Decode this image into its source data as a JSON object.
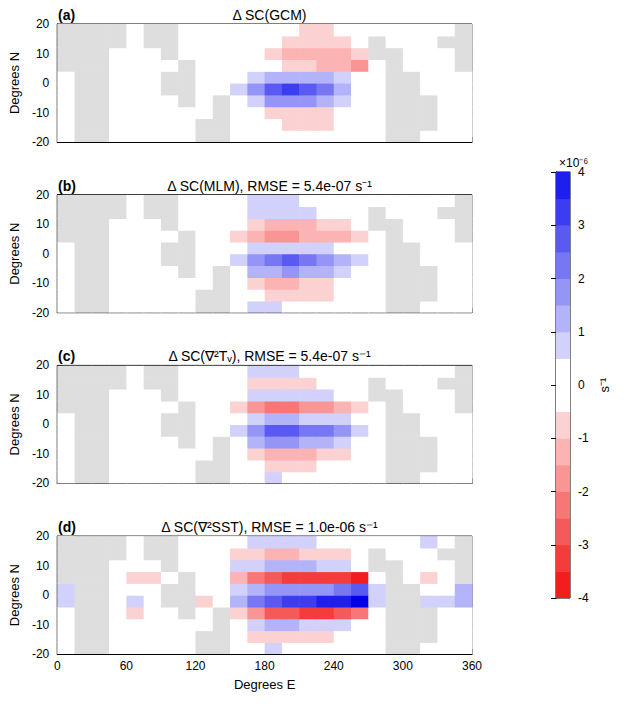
{
  "chart_data": {
    "type": "heatmap",
    "xlabel": "Degrees E",
    "ylabel": "Degrees N",
    "xlim": [
      0,
      360
    ],
    "xticks": [
      0,
      60,
      120,
      180,
      240,
      300,
      360
    ],
    "ylim": [
      -20,
      20
    ],
    "yticks": [
      -20,
      -10,
      0,
      10,
      20
    ],
    "grid": false,
    "x": [
      7.5,
      22.5,
      37.5,
      52.5,
      67.5,
      82.5,
      97.5,
      112.5,
      127.5,
      142.5,
      157.5,
      172.5,
      187.5,
      202.5,
      217.5,
      232.5,
      247.5,
      262.5,
      277.5,
      292.5,
      307.5,
      322.5,
      337.5,
      352.5
    ],
    "y": [
      -18,
      -14,
      -10,
      -6,
      -2,
      2,
      6,
      10,
      14,
      18
    ],
    "colorbar": {
      "range": [
        -4,
        4
      ],
      "ticks": [
        -4,
        -3,
        -2,
        -1,
        0,
        1,
        2,
        3,
        4
      ],
      "scale_label": "×10⁻⁶",
      "label": "s⁻¹"
    },
    "panels": [
      {
        "letter": "(a)",
        "title": "Δ SC(GCM)",
        "tick_labels": "y",
        "values": [
          [
            0,
            null,
            null,
            0,
            0,
            0,
            0,
            0,
            null,
            null,
            0,
            0,
            0,
            -0.2,
            -0.3,
            -0.3,
            -0.2,
            0,
            0,
            null,
            null,
            0,
            0,
            0
          ],
          [
            0,
            null,
            null,
            0,
            0,
            0,
            0,
            0,
            null,
            null,
            0,
            0,
            -0.3,
            -0.5,
            -0.6,
            -0.5,
            -0.3,
            0,
            0,
            null,
            null,
            null,
            0,
            0
          ],
          [
            0,
            null,
            null,
            0,
            0,
            0,
            0,
            0,
            0,
            null,
            0,
            -0.3,
            -0.6,
            -0.8,
            -0.8,
            -0.6,
            -0.4,
            0,
            0,
            null,
            null,
            null,
            0,
            0
          ],
          [
            0,
            null,
            null,
            0,
            0,
            0,
            0,
            null,
            0,
            null,
            0.2,
            0.8,
            1.5,
            1.8,
            1.6,
            1.2,
            0.6,
            0.2,
            0,
            null,
            null,
            null,
            0,
            0
          ],
          [
            0,
            null,
            null,
            0,
            0,
            0,
            null,
            null,
            -0.3,
            0,
            0.5,
            1.5,
            2.8,
            3.0,
            2.6,
            2.0,
            1.2,
            0.3,
            0,
            null,
            null,
            0,
            0,
            0
          ],
          [
            0,
            null,
            null,
            0,
            0,
            0,
            null,
            null,
            0,
            0,
            0.3,
            0.8,
            1.2,
            1.3,
            1.2,
            1.0,
            0.6,
            0.2,
            0,
            null,
            null,
            0,
            0,
            0
          ],
          [
            null,
            null,
            null,
            0,
            0,
            0,
            0,
            null,
            0,
            0,
            0,
            0,
            -0.3,
            -0.6,
            -0.8,
            -1.0,
            -1.3,
            -1.5,
            0,
            null,
            0,
            0,
            0,
            null
          ],
          [
            null,
            null,
            null,
            0,
            0,
            0,
            null,
            0,
            0,
            0,
            0,
            0,
            -0.5,
            -1.0,
            -1.2,
            -1.2,
            -1.0,
            -0.5,
            null,
            null,
            0,
            0,
            0,
            null
          ],
          [
            null,
            null,
            null,
            null,
            0,
            null,
            null,
            0,
            0,
            0,
            0,
            0,
            -0.2,
            -0.6,
            -0.8,
            -0.8,
            -0.6,
            -0.2,
            null,
            0,
            0,
            0,
            null,
            null
          ],
          [
            null,
            null,
            null,
            null,
            0,
            null,
            null,
            0,
            0,
            0,
            0,
            0,
            0,
            -0.3,
            -0.5,
            -0.5,
            -0.3,
            0,
            0,
            0,
            0,
            0,
            0,
            null
          ]
        ]
      },
      {
        "letter": "(b)",
        "title": "Δ SC(MLM), RMSE = 5.4e-07 s⁻¹",
        "tick_labels": "y",
        "values": [
          [
            0,
            null,
            null,
            0,
            0,
            0,
            0,
            0,
            null,
            null,
            0.3,
            0.5,
            0.5,
            0.3,
            0.2,
            0,
            0,
            0,
            0,
            null,
            null,
            0,
            0,
            0
          ],
          [
            0,
            null,
            null,
            0,
            0,
            0,
            0,
            0,
            null,
            null,
            0,
            -0.4,
            -0.8,
            -0.8,
            -0.6,
            -0.5,
            -0.3,
            0,
            0,
            null,
            null,
            null,
            0,
            0
          ],
          [
            0,
            null,
            null,
            0,
            0,
            0,
            0,
            0,
            0,
            null,
            -0.2,
            -0.6,
            -1.0,
            -1.0,
            -0.9,
            -0.7,
            -0.4,
            -0.2,
            0,
            null,
            null,
            null,
            0,
            0
          ],
          [
            0,
            null,
            null,
            0,
            0.3,
            0,
            0,
            null,
            0,
            null,
            0.3,
            1.0,
            1.4,
            1.5,
            1.3,
            1.0,
            0.6,
            0.2,
            0,
            null,
            null,
            null,
            0,
            0
          ],
          [
            0,
            null,
            null,
            0,
            0,
            0,
            null,
            null,
            0,
            0,
            0.5,
            1.5,
            2.2,
            2.5,
            2.3,
            1.8,
            1.2,
            0.5,
            0,
            null,
            null,
            0,
            0,
            0
          ],
          [
            0,
            null,
            null,
            0,
            0,
            0,
            null,
            null,
            0,
            0,
            0.2,
            0.5,
            0.8,
            0.8,
            0.8,
            0.6,
            0.4,
            0.1,
            0,
            null,
            null,
            0,
            0,
            0
          ],
          [
            null,
            null,
            null,
            0,
            0,
            0,
            0,
            null,
            0,
            0,
            -0.5,
            -1.2,
            -1.5,
            -1.5,
            -1.4,
            -1.2,
            -1.0,
            -0.6,
            0,
            null,
            0,
            0,
            0,
            null
          ],
          [
            null,
            null,
            null,
            0,
            0,
            0,
            null,
            0,
            0,
            0,
            -0.3,
            -0.8,
            -1.0,
            -1.0,
            -1.0,
            -0.8,
            -0.6,
            -0.3,
            null,
            null,
            0,
            0,
            0,
            null
          ],
          [
            null,
            null,
            null,
            null,
            0,
            null,
            null,
            0,
            0,
            0,
            0.3,
            0.5,
            0.6,
            0.6,
            0.5,
            0.4,
            0.2,
            0,
            null,
            0,
            0,
            0,
            null,
            null
          ],
          [
            null,
            null,
            null,
            null,
            0,
            null,
            null,
            0,
            0,
            0,
            0.3,
            0.6,
            0.6,
            0.5,
            0.3,
            0,
            0,
            0,
            0,
            0,
            0,
            0.3,
            0,
            null
          ]
        ]
      },
      {
        "letter": "(c)",
        "title": "Δ SC(∇²Tᵥ), RMSE = 5.4e-07 s⁻¹",
        "tick_labels": "y",
        "values": [
          [
            0,
            null,
            null,
            0,
            0,
            0,
            0,
            0,
            null,
            null,
            0.2,
            0.4,
            0.5,
            0.4,
            0.3,
            0.2,
            0,
            0,
            0,
            null,
            null,
            0,
            0,
            0
          ],
          [
            0,
            null,
            null,
            0,
            0,
            0,
            0,
            0,
            null,
            null,
            0,
            -0.3,
            -0.6,
            -0.6,
            -0.5,
            -0.3,
            -0.2,
            0,
            0,
            null,
            null,
            null,
            0,
            0
          ],
          [
            0,
            null,
            null,
            0,
            0,
            0,
            0,
            0,
            0,
            null,
            -0.3,
            -0.8,
            -1.2,
            -1.2,
            -1.0,
            -0.8,
            -0.5,
            -0.2,
            0,
            null,
            null,
            null,
            0,
            0
          ],
          [
            0,
            null,
            null,
            0,
            0.3,
            0.3,
            0,
            null,
            0,
            null,
            0.3,
            1.0,
            1.5,
            1.6,
            1.4,
            1.2,
            0.8,
            0.3,
            0,
            null,
            null,
            null,
            0,
            0
          ],
          [
            0,
            null,
            null,
            0,
            0,
            0,
            null,
            null,
            0,
            0,
            0.6,
            1.8,
            2.5,
            2.6,
            2.4,
            2.0,
            1.5,
            0.8,
            0,
            null,
            null,
            0,
            0,
            0
          ],
          [
            0,
            null,
            null,
            0,
            0,
            0,
            null,
            null,
            0,
            0,
            0.3,
            0.8,
            1.0,
            1.0,
            0.9,
            0.8,
            0.6,
            0.3,
            0,
            null,
            null,
            0,
            0,
            0
          ],
          [
            null,
            null,
            null,
            0,
            0,
            0,
            0,
            null,
            0,
            0,
            -0.6,
            -1.5,
            -2.0,
            -2.0,
            -1.8,
            -1.5,
            -1.2,
            -0.8,
            0,
            null,
            0,
            0,
            0,
            null
          ],
          [
            null,
            null,
            null,
            0,
            0,
            0,
            null,
            0,
            0,
            0,
            0.3,
            0.6,
            0.8,
            0.8,
            0.6,
            0.5,
            0.3,
            0,
            null,
            null,
            0,
            0,
            0,
            null
          ],
          [
            null,
            null,
            null,
            null,
            0,
            null,
            null,
            0,
            0,
            0,
            -0.3,
            -0.5,
            -0.6,
            -0.6,
            -0.5,
            -0.4,
            -0.3,
            0,
            null,
            0,
            0,
            0,
            null,
            null
          ],
          [
            null,
            null,
            null,
            null,
            0,
            null,
            null,
            0,
            0,
            0,
            0.3,
            0.5,
            0.6,
            0.6,
            0.4,
            0.2,
            0,
            0,
            0,
            0,
            0,
            0,
            0,
            null
          ]
        ]
      },
      {
        "letter": "(d)",
        "title": "Δ SC(∇²SST), RMSE = 1.0e-06 s⁻¹",
        "values": [
          [
            0,
            null,
            null,
            0,
            0,
            0,
            0,
            0,
            null,
            null,
            0.3,
            0.4,
            0.5,
            0.4,
            0.3,
            0.2,
            0,
            0,
            0,
            null,
            null,
            0,
            0,
            0
          ],
          [
            0,
            null,
            null,
            0,
            0,
            0,
            0,
            0,
            null,
            null,
            -0.3,
            -0.6,
            -0.8,
            -0.8,
            -0.6,
            -0.5,
            -0.3,
            0,
            0,
            null,
            null,
            null,
            0,
            0
          ],
          [
            0,
            null,
            null,
            0,
            0,
            0,
            0.3,
            0,
            0,
            null,
            0.3,
            0.8,
            1.0,
            1.0,
            0.8,
            0.7,
            0.5,
            0.3,
            0,
            null,
            null,
            null,
            0,
            0
          ],
          [
            0,
            null,
            null,
            -0.3,
            -0.5,
            -0.3,
            0,
            null,
            0,
            null,
            -0.5,
            -1.5,
            -2.5,
            -2.8,
            -3.0,
            -3.0,
            -2.8,
            -2.0,
            0,
            null,
            null,
            null,
            -0.3,
            0
          ],
          [
            0.5,
            null,
            null,
            0.3,
            0.5,
            0.3,
            null,
            null,
            -0.5,
            0.3,
            1.0,
            2.0,
            2.8,
            3.0,
            3.2,
            3.5,
            3.8,
            4.0,
            0.5,
            null,
            null,
            0.5,
            0.5,
            1.0
          ],
          [
            0.5,
            null,
            null,
            0,
            0,
            0,
            null,
            null,
            0,
            0,
            0.5,
            1.0,
            1.5,
            1.5,
            1.5,
            1.8,
            2.0,
            2.5,
            0.5,
            null,
            null,
            0,
            0,
            1.0
          ],
          [
            null,
            null,
            null,
            0,
            -0.5,
            -0.5,
            0,
            null,
            0,
            -0.3,
            -1.0,
            -2.0,
            -2.8,
            -3.0,
            -3.0,
            -3.0,
            -3.0,
            -3.5,
            0,
            null,
            0,
            -0.5,
            0,
            null
          ],
          [
            null,
            null,
            null,
            0,
            0,
            0,
            null,
            0,
            0,
            0,
            0.5,
            0.8,
            1.0,
            1.0,
            1.0,
            0.8,
            0.6,
            0.3,
            null,
            null,
            0,
            0,
            0,
            null
          ],
          [
            null,
            null,
            null,
            null,
            0.3,
            null,
            null,
            0,
            0,
            0,
            -0.5,
            -0.8,
            -1.0,
            -1.0,
            -0.9,
            -0.8,
            -0.6,
            -0.3,
            null,
            0,
            0,
            0,
            null,
            null
          ],
          [
            null,
            null,
            null,
            null,
            0,
            null,
            null,
            0,
            0,
            0,
            0.3,
            0.5,
            0.6,
            0.6,
            0.5,
            0.3,
            0,
            0,
            0,
            0,
            0,
            0.5,
            0,
            null
          ]
        ]
      }
    ]
  }
}
